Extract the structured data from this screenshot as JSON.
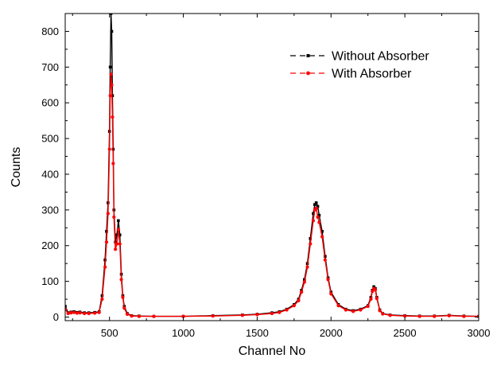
{
  "chart_data": {
    "type": "line",
    "title": "",
    "xlabel": "Channel No",
    "ylabel": "Counts",
    "xlim": [
      200,
      3000
    ],
    "ylim": [
      -10,
      850
    ],
    "xticks": [
      500,
      1000,
      1500,
      2000,
      2500,
      3000
    ],
    "yticks": [
      0,
      100,
      200,
      300,
      400,
      500,
      600,
      700,
      800
    ],
    "grid": false,
    "legend_position": "top-right",
    "series": [
      {
        "name": "Without Absorber",
        "color": "#000000",
        "marker": "square",
        "x": [
          200,
          220,
          240,
          260,
          280,
          300,
          330,
          360,
          400,
          430,
          450,
          470,
          480,
          490,
          500,
          505,
          510,
          515,
          520,
          525,
          530,
          540,
          550,
          560,
          570,
          580,
          590,
          600,
          620,
          650,
          700,
          800,
          1000,
          1200,
          1400,
          1500,
          1600,
          1650,
          1700,
          1750,
          1780,
          1800,
          1820,
          1840,
          1860,
          1880,
          1890,
          1900,
          1910,
          1920,
          1940,
          1960,
          1980,
          2000,
          2050,
          2100,
          2150,
          2200,
          2250,
          2270,
          2280,
          2290,
          2300,
          2310,
          2330,
          2350,
          2400,
          2500,
          2600,
          2700,
          2800,
          2900,
          3000
        ],
        "y": [
          30,
          12,
          14,
          15,
          13,
          14,
          12,
          12,
          13,
          15,
          60,
          160,
          240,
          320,
          520,
          700,
          850,
          800,
          620,
          470,
          300,
          210,
          230,
          270,
          230,
          120,
          60,
          30,
          10,
          4,
          3,
          2,
          2,
          4,
          6,
          8,
          12,
          15,
          22,
          35,
          50,
          75,
          105,
          150,
          220,
          290,
          315,
          320,
          310,
          285,
          240,
          170,
          110,
          70,
          35,
          22,
          18,
          22,
          32,
          55,
          75,
          85,
          80,
          55,
          20,
          10,
          6,
          4,
          3,
          3,
          5,
          3,
          2
        ]
      },
      {
        "name": "With Absorber",
        "color": "#ff0000",
        "marker": "circle",
        "x": [
          200,
          220,
          240,
          260,
          280,
          300,
          330,
          360,
          400,
          430,
          450,
          470,
          480,
          490,
          500,
          505,
          510,
          515,
          520,
          525,
          530,
          540,
          550,
          560,
          570,
          580,
          590,
          600,
          620,
          650,
          700,
          800,
          1000,
          1200,
          1400,
          1500,
          1600,
          1650,
          1700,
          1750,
          1780,
          1800,
          1820,
          1840,
          1860,
          1880,
          1890,
          1900,
          1910,
          1920,
          1940,
          1960,
          1980,
          2000,
          2050,
          2100,
          2150,
          2200,
          2250,
          2270,
          2280,
          2290,
          2300,
          2310,
          2330,
          2350,
          2400,
          2500,
          2600,
          2700,
          2800,
          2900,
          3000
        ],
        "y": [
          22,
          10,
          12,
          13,
          11,
          12,
          10,
          10,
          11,
          13,
          50,
          140,
          210,
          290,
          470,
          620,
          680,
          650,
          560,
          430,
          280,
          190,
          205,
          245,
          205,
          105,
          55,
          25,
          8,
          3,
          2,
          2,
          2,
          3,
          5,
          7,
          10,
          13,
          20,
          32,
          46,
          70,
          98,
          140,
          205,
          270,
          300,
          305,
          280,
          265,
          225,
          160,
          105,
          65,
          32,
          20,
          16,
          20,
          30,
          50,
          72,
          80,
          76,
          52,
          18,
          9,
          5,
          3,
          2,
          2,
          4,
          2,
          2
        ]
      }
    ]
  }
}
